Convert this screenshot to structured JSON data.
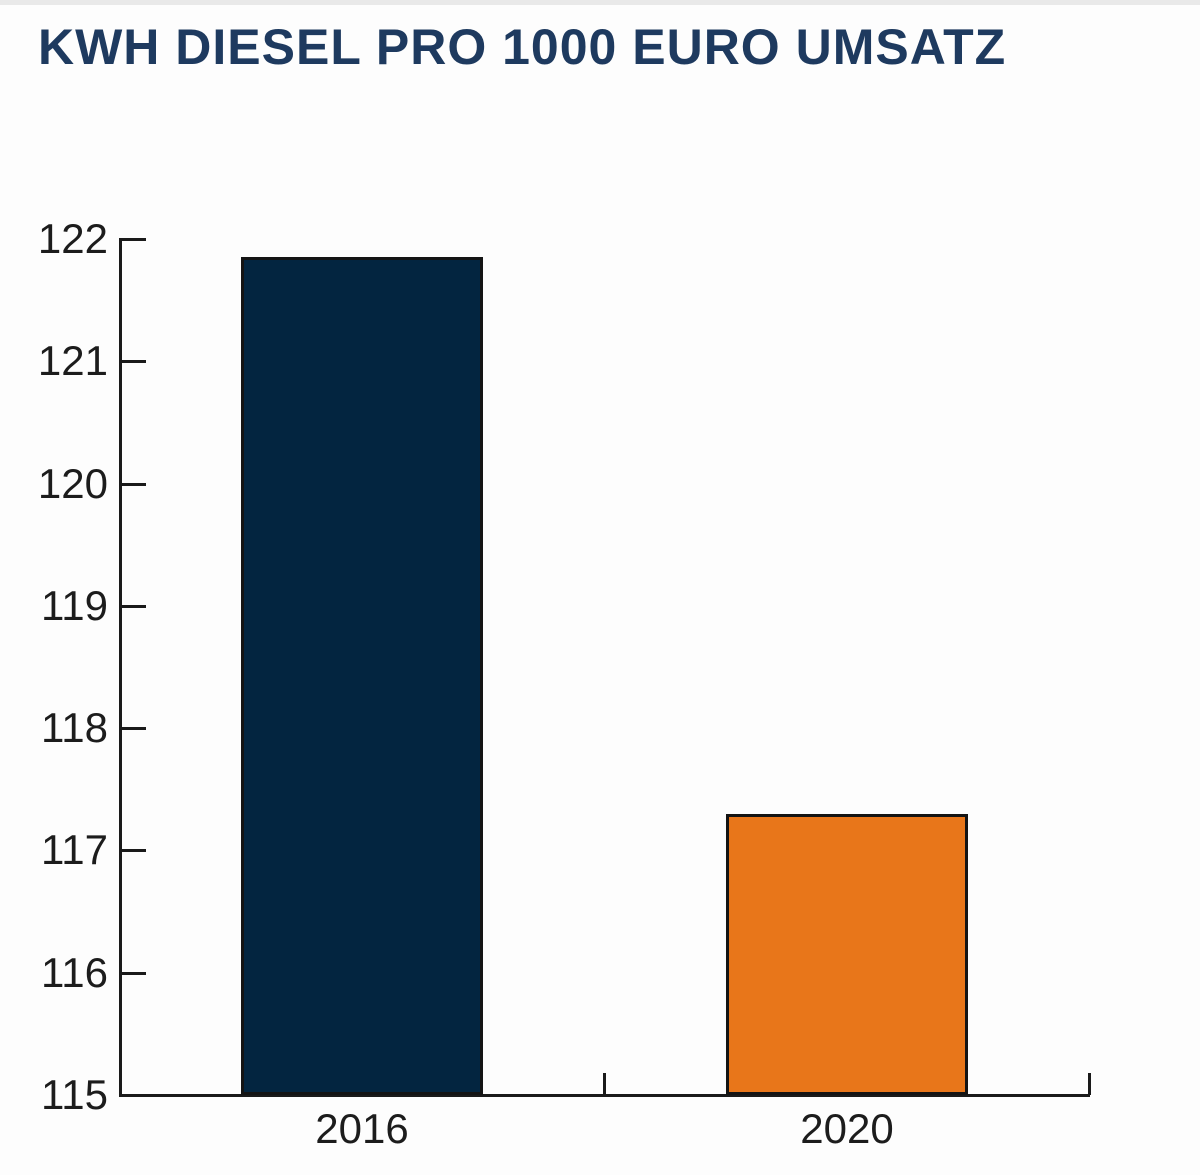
{
  "page": {
    "background_color": "#ffffff"
  },
  "chart": {
    "title_color": "#1e3a5f",
    "axis_color": "#1a1a1a",
    "bar_border_color": "#141414"
  },
  "chart_data": {
    "type": "bar",
    "title": "KWH DIESEL PRO 1000 EURO UMSATZ",
    "categories": [
      "2016",
      "2020"
    ],
    "values": [
      121.85,
      117.3
    ],
    "bar_colors": [
      "#032540",
      "#e8761a"
    ],
    "xlabel": "",
    "ylabel": "",
    "ylim": [
      115,
      122
    ],
    "yticks": [
      115,
      116,
      117,
      118,
      119,
      120,
      121,
      122
    ],
    "grid": false,
    "legend": false,
    "tick_style": "inward",
    "x_boundary_ticks": true
  }
}
